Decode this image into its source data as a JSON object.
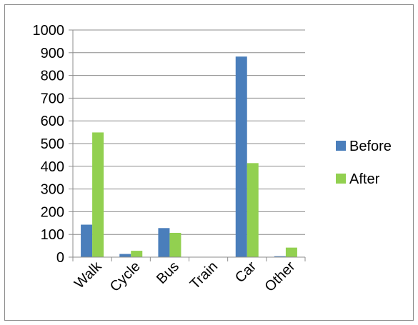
{
  "chart_data": {
    "type": "bar",
    "title": "",
    "xlabel": "",
    "ylabel": "",
    "categories": [
      "Walk",
      "Cycle",
      "Bus",
      "Train",
      "Car",
      "Other"
    ],
    "series": [
      {
        "name": "Before",
        "color": "#4a7ebb",
        "values": [
          143,
          14,
          128,
          0,
          883,
          4
        ]
      },
      {
        "name": "After",
        "color": "#92d050",
        "values": [
          549,
          28,
          107,
          0,
          414,
          42
        ]
      }
    ],
    "ylim": [
      0,
      1000
    ],
    "yticks": [
      0,
      100,
      200,
      300,
      400,
      500,
      600,
      700,
      800,
      900,
      1000
    ],
    "grid": true,
    "legend_position": "right"
  }
}
